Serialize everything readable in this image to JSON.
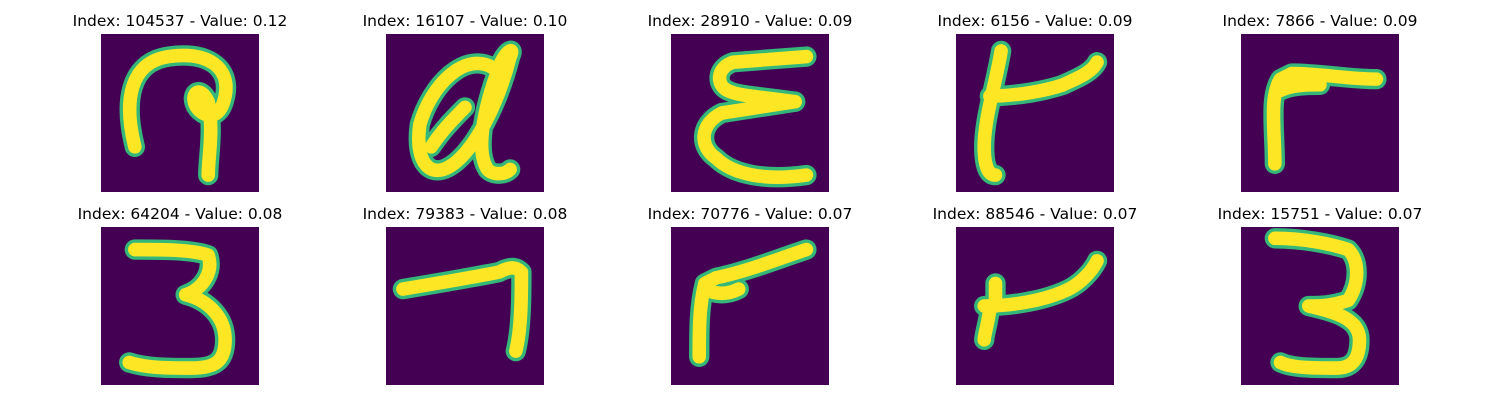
{
  "figure": {
    "panels": [
      {
        "title": "Index: 104537 - Value: 0.12",
        "image_name": "digit-image-104537"
      },
      {
        "title": "Index: 16107 - Value: 0.10",
        "image_name": "digit-image-16107"
      },
      {
        "title": "Index: 28910 - Value: 0.09",
        "image_name": "digit-image-28910"
      },
      {
        "title": "Index: 6156 - Value: 0.09",
        "image_name": "digit-image-6156"
      },
      {
        "title": "Index: 7866 - Value: 0.09",
        "image_name": "digit-image-7866"
      },
      {
        "title": "Index: 64204 - Value: 0.08",
        "image_name": "digit-image-64204"
      },
      {
        "title": "Index: 79383 - Value: 0.08",
        "image_name": "digit-image-79383"
      },
      {
        "title": "Index: 70776 - Value: 0.07",
        "image_name": "digit-image-70776"
      },
      {
        "title": "Index: 88546 - Value: 0.07",
        "image_name": "digit-image-88546"
      },
      {
        "title": "Index: 15751 - Value: 0.07",
        "image_name": "digit-image-15751"
      }
    ]
  },
  "colors": {
    "background": "#440154",
    "stroke": "#fde725",
    "edge": "#35b779"
  }
}
